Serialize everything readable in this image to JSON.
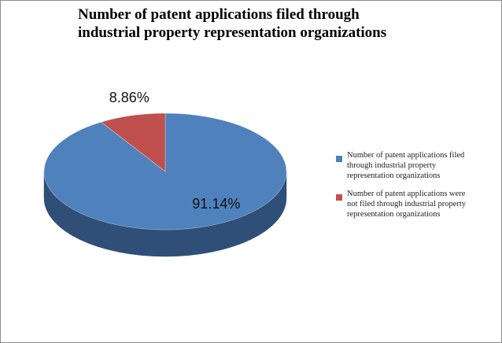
{
  "chart_data": {
    "type": "pie",
    "title_lines": [
      "Number of patent applications filed through",
      "industrial property representation organizations"
    ],
    "slices": [
      {
        "name": "Number of patent applications filed through industrial property representation organizations",
        "legend_lines": [
          "Number of patent applications filed",
          "through industrial property",
          "representation organizations"
        ],
        "value": 91.14,
        "label": "91.14%",
        "color": "#4f81bd",
        "side_color": "#2f4f78"
      },
      {
        "name": "Number of patent applications were not filed through industrial property representation organizations",
        "legend_lines": [
          "Number of patent applications were",
          "not filed through industrial property",
          "representation organizations"
        ],
        "value": 8.86,
        "label": "8.86%",
        "color": "#c0504d",
        "side_color": "#7a2f2d"
      }
    ],
    "style": "3d",
    "legend_position": "right"
  }
}
